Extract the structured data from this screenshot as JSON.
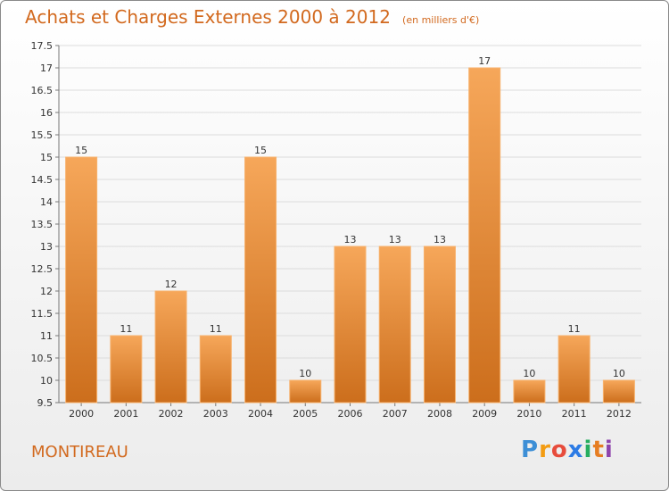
{
  "title": "Achats et Charges Externes 2000 à 2012",
  "unit_note": "(en milliers d'€)",
  "town": "MONTIREAU",
  "logo": {
    "letters": [
      "P",
      "r",
      "o",
      "x",
      "i",
      "t",
      "i"
    ],
    "colors": [
      "#3d8fd6",
      "#f39c12",
      "#e74c3c",
      "#2c7be5",
      "#27ae60",
      "#e67e22",
      "#8e44ad"
    ]
  },
  "colors": {
    "bar": "#f39a42",
    "bar_dark": "#cf6f1a",
    "accent": "#d2691e"
  },
  "chart_data": {
    "type": "bar",
    "categories": [
      "2000",
      "2001",
      "2002",
      "2003",
      "2004",
      "2005",
      "2006",
      "2007",
      "2008",
      "2009",
      "2010",
      "2011",
      "2012"
    ],
    "values": [
      15,
      11,
      12,
      11,
      15,
      10,
      13,
      13,
      13,
      17,
      10,
      11,
      10
    ],
    "data_labels": [
      "15",
      "11",
      "12",
      "11",
      "15",
      "10",
      "13",
      "13",
      "13",
      "17",
      "10",
      "11",
      "10"
    ],
    "title": "Achats et Charges Externes 2000 à 2012",
    "ylim": [
      9.5,
      17.5
    ],
    "yticks": [
      9.5,
      10,
      10.5,
      11,
      11.5,
      12,
      12.5,
      13,
      13.5,
      14,
      14.5,
      15,
      15.5,
      16,
      16.5,
      17,
      17.5
    ],
    "ytick_labels": [
      "9.5",
      "10",
      "10.5",
      "11",
      "11.5",
      "12",
      "12.5",
      "13",
      "13.5",
      "14",
      "14.5",
      "15",
      "15.5",
      "16",
      "16.5",
      "17",
      "17.5"
    ],
    "grid": true
  }
}
